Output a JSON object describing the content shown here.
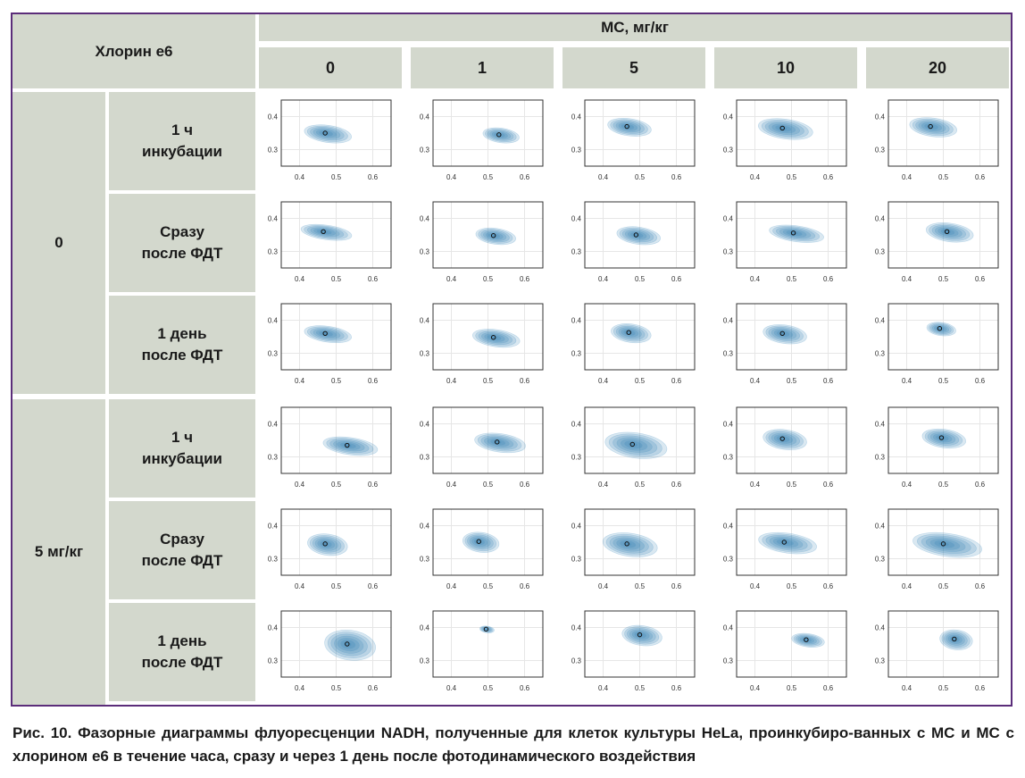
{
  "header": {
    "row_factor": "Хлорин е6",
    "col_factor": "МС, мг/кг",
    "col_levels": [
      "0",
      "1",
      "5",
      "10",
      "20"
    ]
  },
  "row_groups": [
    {
      "label": "0",
      "rows": [
        {
          "label": [
            "1 ч",
            "инкубации"
          ]
        },
        {
          "label": [
            "Сразу",
            "после ФДТ"
          ]
        },
        {
          "label": [
            "1 день",
            "после ФДТ"
          ]
        }
      ]
    },
    {
      "label": "5 мг/кг",
      "rows": [
        {
          "label": [
            "1 ч",
            "инкубации"
          ]
        },
        {
          "label": [
            "Сразу",
            "после ФДТ"
          ]
        },
        {
          "label": [
            "1 день",
            "после ФДТ"
          ]
        }
      ]
    }
  ],
  "chart_data": {
    "type": "scatter",
    "subtype": "phasor density contour grid",
    "xlim": [
      0.35,
      0.65
    ],
    "ylim": [
      0.25,
      0.45
    ],
    "x_ticks": [
      "0.4",
      "0.5",
      "0.6"
    ],
    "y_ticks": [
      "0.3",
      "0.4"
    ],
    "grid": true,
    "contour_color": "#1a6fa8",
    "panels": [
      [
        {
          "x": 0.47,
          "y": 0.35,
          "sx": 0.065,
          "sy": 0.026
        },
        {
          "x": 0.53,
          "y": 0.345,
          "sx": 0.05,
          "sy": 0.022
        },
        {
          "x": 0.465,
          "y": 0.37,
          "sx": 0.06,
          "sy": 0.026
        },
        {
          "x": 0.475,
          "y": 0.365,
          "sx": 0.075,
          "sy": 0.03
        },
        {
          "x": 0.465,
          "y": 0.37,
          "sx": 0.065,
          "sy": 0.028
        }
      ],
      [
        {
          "x": 0.465,
          "y": 0.36,
          "sx": 0.07,
          "sy": 0.022
        },
        {
          "x": 0.515,
          "y": 0.348,
          "sx": 0.055,
          "sy": 0.024
        },
        {
          "x": 0.49,
          "y": 0.35,
          "sx": 0.06,
          "sy": 0.026
        },
        {
          "x": 0.505,
          "y": 0.356,
          "sx": 0.075,
          "sy": 0.024
        },
        {
          "x": 0.51,
          "y": 0.36,
          "sx": 0.065,
          "sy": 0.028
        }
      ],
      [
        {
          "x": 0.47,
          "y": 0.36,
          "sx": 0.065,
          "sy": 0.024
        },
        {
          "x": 0.515,
          "y": 0.348,
          "sx": 0.065,
          "sy": 0.026
        },
        {
          "x": 0.47,
          "y": 0.363,
          "sx": 0.055,
          "sy": 0.028
        },
        {
          "x": 0.475,
          "y": 0.36,
          "sx": 0.06,
          "sy": 0.028
        },
        {
          "x": 0.49,
          "y": 0.375,
          "sx": 0.04,
          "sy": 0.02
        }
      ],
      [
        {
          "x": 0.53,
          "y": 0.335,
          "sx": 0.075,
          "sy": 0.026
        },
        {
          "x": 0.525,
          "y": 0.345,
          "sx": 0.07,
          "sy": 0.028
        },
        {
          "x": 0.48,
          "y": 0.338,
          "sx": 0.085,
          "sy": 0.038
        },
        {
          "x": 0.475,
          "y": 0.355,
          "sx": 0.06,
          "sy": 0.03
        },
        {
          "x": 0.495,
          "y": 0.358,
          "sx": 0.06,
          "sy": 0.028
        }
      ],
      [
        {
          "x": 0.47,
          "y": 0.345,
          "sx": 0.055,
          "sy": 0.032
        },
        {
          "x": 0.475,
          "y": 0.352,
          "sx": 0.05,
          "sy": 0.03
        },
        {
          "x": 0.465,
          "y": 0.345,
          "sx": 0.075,
          "sy": 0.035
        },
        {
          "x": 0.48,
          "y": 0.35,
          "sx": 0.08,
          "sy": 0.03
        },
        {
          "x": 0.5,
          "y": 0.345,
          "sx": 0.095,
          "sy": 0.035
        }
      ],
      [
        {
          "x": 0.53,
          "y": 0.35,
          "sx": 0.07,
          "sy": 0.045
        },
        {
          "x": 0.495,
          "y": 0.395,
          "sx": 0.02,
          "sy": 0.01
        },
        {
          "x": 0.5,
          "y": 0.378,
          "sx": 0.055,
          "sy": 0.03
        },
        {
          "x": 0.54,
          "y": 0.363,
          "sx": 0.045,
          "sy": 0.02
        },
        {
          "x": 0.53,
          "y": 0.365,
          "sx": 0.045,
          "sy": 0.03
        }
      ]
    ]
  },
  "caption": "Рис. 10. Фазорные диаграммы флуоресценции NADH, полученные для клеток культуры HeLa, проинкубиро-ванных с МС и МС с хлорином е6 в течение часа, сразу и через 1 день после фотодинамического воздействия"
}
